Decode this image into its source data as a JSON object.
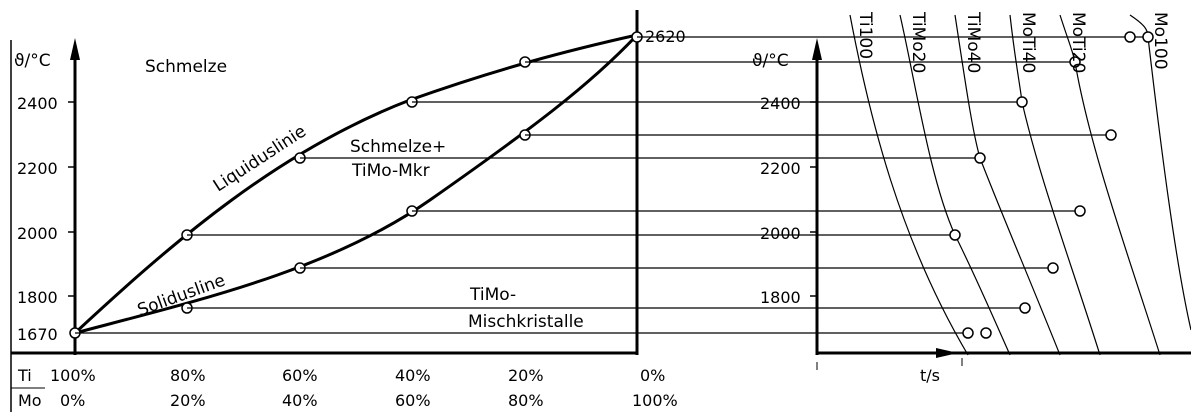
{
  "phase_diagram": {
    "y_axis_label": "ϑ/°C",
    "y_ticks": [
      "2400",
      "2200",
      "2000",
      "1800",
      "1670"
    ],
    "melt_top_label": "2620",
    "regions": {
      "melt": "Schmelze",
      "two_phase_line1": "Schmelze+",
      "two_phase_line2": "TiMo-Mkr",
      "solid_line1": "TiMo-",
      "solid_line2": "Mischkristalle"
    },
    "curves": {
      "liquidus": "Liquiduslinie",
      "solidus": "Solidusline"
    },
    "x_rows": {
      "ti_label": "Ti",
      "mo_label": "Mo",
      "ti_values": [
        "100%",
        "80%",
        "60%",
        "40%",
        "20%",
        "0%"
      ],
      "mo_values": [
        "0%",
        "20%",
        "40%",
        "60%",
        "80%",
        "100%"
      ]
    }
  },
  "cooling_diagram": {
    "y_axis_label": "ϑ/°C",
    "y_ticks": [
      "2400",
      "2200",
      "2000",
      "1800"
    ],
    "x_axis_label": "t/s",
    "curve_labels": [
      "Ti100",
      "TiMo20",
      "TiMo40",
      "MoTi40",
      "MoTi20",
      "Mo100"
    ]
  }
}
